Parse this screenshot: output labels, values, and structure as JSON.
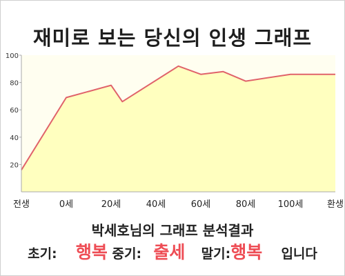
{
  "title": "재미로 보는 당신의 인생 그래프",
  "chart_data": {
    "type": "area",
    "title": "재미로 보는 당신의 인생 그래프",
    "xlabel": "",
    "ylabel": "",
    "x_tick_labels": [
      "전생",
      "0세",
      "20세",
      "40세",
      "60세",
      "80세",
      "100세",
      "환생"
    ],
    "y_ticks": [
      20,
      40,
      60,
      80,
      100
    ],
    "ylim": [
      0,
      100
    ],
    "grid": false,
    "colors": {
      "fill": "#ffffbf",
      "line": "#e0626a",
      "background": "#fffef0",
      "axis": "#aaaaaa"
    },
    "points": [
      {
        "x": "전생",
        "y": 16
      },
      {
        "x": "0세",
        "y": 69
      },
      {
        "x": "20세",
        "y": 78
      },
      {
        "x": "25세",
        "y": 66
      },
      {
        "x": "50세",
        "y": 92
      },
      {
        "x": "60세",
        "y": 86
      },
      {
        "x": "70세",
        "y": 88
      },
      {
        "x": "80세",
        "y": 81
      },
      {
        "x": "100세",
        "y": 86
      },
      {
        "x": "환생",
        "y": 86
      }
    ]
  },
  "summary": {
    "heading": "박세호님의 그래프 분석결과",
    "early_label": "초기:",
    "early_value": "행복",
    "middle_label": "중기:",
    "middle_value": "출세",
    "late_label": "말기:",
    "late_value": "행복",
    "ending": "입니다"
  }
}
